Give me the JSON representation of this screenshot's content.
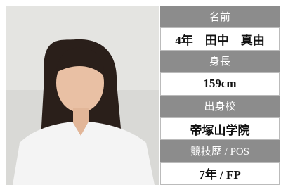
{
  "profile": [
    {
      "label": "名前",
      "value": "4年　田中　真由"
    },
    {
      "label": "身長",
      "value": "159cm"
    },
    {
      "label": "出身校",
      "value": "帝塚山学院"
    },
    {
      "label": "競技歴 / POS",
      "value": "7年 / FP"
    }
  ]
}
